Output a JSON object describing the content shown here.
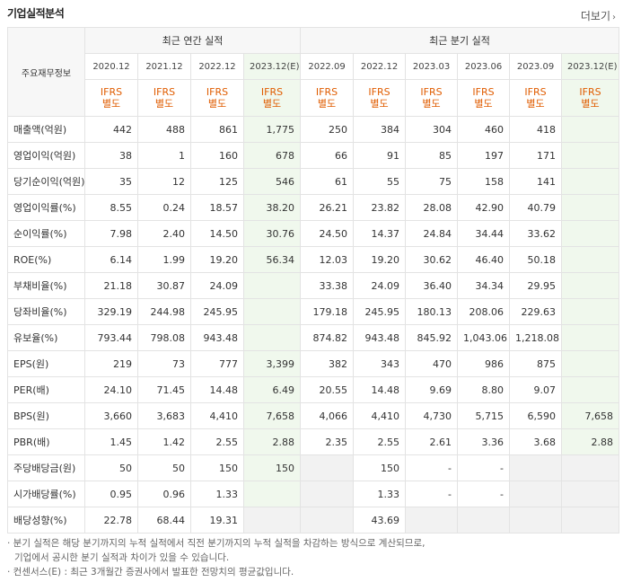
{
  "section_title": "기업실적분석",
  "more_label": "더보기",
  "chevron_glyph": "›",
  "header": {
    "row_label": "주요재무정보",
    "annual_group": "최근 연간 실적",
    "quarter_group": "최근 분기 실적",
    "annual_periods": [
      "2020.12",
      "2021.12",
      "2022.12",
      "2023.12(E)"
    ],
    "quarter_periods": [
      "2022.09",
      "2022.12",
      "2023.03",
      "2023.06",
      "2023.09",
      "2023.12(E)"
    ],
    "ifrs_line1": "IFRS",
    "ifrs_line2": "별도"
  },
  "rows": [
    {
      "label": "매출액(억원)",
      "values": [
        "442",
        "488",
        "861",
        "1,775",
        "250",
        "384",
        "304",
        "460",
        "418",
        ""
      ]
    },
    {
      "label": "영업이익(억원)",
      "values": [
        "38",
        "1",
        "160",
        "678",
        "66",
        "91",
        "85",
        "197",
        "171",
        ""
      ]
    },
    {
      "label": "당기순이익(억원)",
      "values": [
        "35",
        "12",
        "125",
        "546",
        "61",
        "55",
        "75",
        "158",
        "141",
        ""
      ]
    },
    {
      "label": "영업이익률(%)",
      "values": [
        "8.55",
        "0.24",
        "18.57",
        "38.20",
        "26.21",
        "23.82",
        "28.08",
        "42.90",
        "40.79",
        ""
      ]
    },
    {
      "label": "순이익률(%)",
      "values": [
        "7.98",
        "2.40",
        "14.50",
        "30.76",
        "24.50",
        "14.37",
        "24.84",
        "34.44",
        "33.62",
        ""
      ]
    },
    {
      "label": "ROE(%)",
      "values": [
        "6.14",
        "1.99",
        "19.20",
        "56.34",
        "12.03",
        "19.20",
        "30.62",
        "46.40",
        "50.18",
        ""
      ]
    },
    {
      "label": "부채비율(%)",
      "values": [
        "21.18",
        "30.87",
        "24.09",
        "",
        "33.38",
        "24.09",
        "36.40",
        "34.34",
        "29.95",
        ""
      ]
    },
    {
      "label": "당좌비율(%)",
      "values": [
        "329.19",
        "244.98",
        "245.95",
        "",
        "179.18",
        "245.95",
        "180.13",
        "208.06",
        "229.63",
        ""
      ]
    },
    {
      "label": "유보율(%)",
      "values": [
        "793.44",
        "798.08",
        "943.48",
        "",
        "874.82",
        "943.48",
        "845.92",
        "1,043.06",
        "1,218.08",
        ""
      ]
    },
    {
      "label": "EPS(원)",
      "values": [
        "219",
        "73",
        "777",
        "3,399",
        "382",
        "343",
        "470",
        "986",
        "875",
        ""
      ]
    },
    {
      "label": "PER(배)",
      "values": [
        "24.10",
        "71.45",
        "14.48",
        "6.49",
        "20.55",
        "14.48",
        "9.69",
        "8.80",
        "9.07",
        ""
      ]
    },
    {
      "label": "BPS(원)",
      "values": [
        "3,660",
        "3,683",
        "4,410",
        "7,658",
        "4,066",
        "4,410",
        "4,730",
        "5,715",
        "6,590",
        "7,658"
      ]
    },
    {
      "label": "PBR(배)",
      "values": [
        "1.45",
        "1.42",
        "2.55",
        "2.88",
        "2.35",
        "2.55",
        "2.61",
        "3.36",
        "3.68",
        "2.88"
      ]
    },
    {
      "label": "주당배당금(원)",
      "values": [
        "50",
        "50",
        "150",
        "150",
        "",
        "150",
        "-",
        "-",
        "",
        ""
      ]
    },
    {
      "label": "시가배당률(%)",
      "values": [
        "0.95",
        "0.96",
        "1.33",
        "",
        "",
        "1.33",
        "-",
        "-",
        "",
        ""
      ]
    },
    {
      "label": "배당성향(%)",
      "values": [
        "22.78",
        "68.44",
        "19.31",
        "",
        "",
        "43.69",
        "",
        "",
        "",
        ""
      ]
    }
  ],
  "notes": [
    "· 분기 실적은 해당 분기까지의 누적 실적에서 직전 분기까지의 누적 실적을 차감하는 방식으로 계산되므로,",
    "  기업에서 공시한 분기 실적과 차이가 있을 수 있습니다.",
    "· 컨센서스(E) : 최근 3개월간 증권사에서 발표한 전망치의 평균값입니다."
  ],
  "colors": {
    "ifrs": "#e05c00",
    "estimate_bg": "#f0f8ed",
    "empty_bg": "#f2f2f2"
  }
}
